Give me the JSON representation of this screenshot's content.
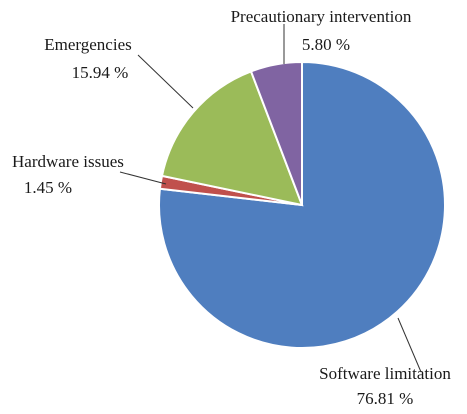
{
  "chart_data": {
    "type": "pie",
    "title": "",
    "start_angle_deg": 0,
    "direction": "clockwise",
    "slices": [
      {
        "label": "Software limitation",
        "value": 76.81,
        "value_label": "76.81 %",
        "color": "#4f7ebf"
      },
      {
        "label": "Hardware issues",
        "value": 1.45,
        "value_label": "1.45 %",
        "color": "#c0504d"
      },
      {
        "label": "Emergencies",
        "value": 15.94,
        "value_label": "15.94 %",
        "color": "#9bbb59"
      },
      {
        "label": "Precautionary intervention",
        "value": 5.8,
        "value_label": "5.80 %",
        "color": "#8064a2"
      }
    ]
  }
}
